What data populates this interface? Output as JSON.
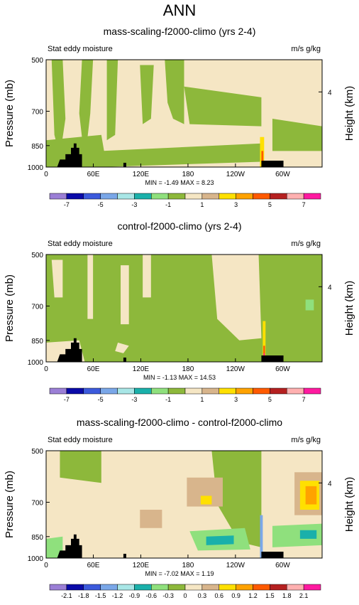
{
  "figure": {
    "main_title": "ANN"
  },
  "chart_data": [
    {
      "type": "heatmap",
      "title": "mass-scaling-f2000-climo (yrs 2-4)",
      "left_label": "Stat eddy moisture",
      "right_label": "m/s g/kg",
      "ylabel": "Pressure (mb)",
      "ylabel_right": "Height (km)",
      "yticks": [
        "500",
        "700",
        "850",
        "1000"
      ],
      "yticks_right": [
        "4"
      ],
      "xticks": [
        "0",
        "60E",
        "120E",
        "180",
        "120W",
        "60W"
      ],
      "min_max": "MIN = -1.49  MAX = 8.23",
      "colorbar_labels": [
        "-7",
        "-5",
        "-3",
        "-1",
        "1",
        "3",
        "5",
        "7"
      ],
      "colors": [
        "#9b7fd6",
        "#0a0aa8",
        "#3c5adc",
        "#7aa7e8",
        "#a8e6e6",
        "#1ab0aa",
        "#8fe07d",
        "#8db83b",
        "#f5e6c4",
        "#d8b58c",
        "#ffe000",
        "#ffa200",
        "#ff5a00",
        "#b52020",
        "#ffb0b0",
        "#ff1aa0"
      ],
      "field": "positive-broad"
    },
    {
      "type": "heatmap",
      "title": "control-f2000-climo (yrs 2-4)",
      "left_label": "Stat eddy moisture",
      "right_label": "m/s g/kg",
      "ylabel": "Pressure (mb)",
      "ylabel_right": "Height (km)",
      "yticks": [
        "500",
        "700",
        "850",
        "1000"
      ],
      "yticks_right": [
        "4"
      ],
      "xticks": [
        "0",
        "60E",
        "120E",
        "180",
        "120W",
        "60W"
      ],
      "min_max": "MIN = -1.13  MAX = 14.53",
      "colorbar_labels": [
        "-7",
        "-5",
        "-3",
        "-1",
        "1",
        "3",
        "5",
        "7"
      ],
      "colors": [
        "#9b7fd6",
        "#0a0aa8",
        "#3c5adc",
        "#7aa7e8",
        "#a8e6e6",
        "#1ab0aa",
        "#8fe07d",
        "#8db83b",
        "#f5e6c4",
        "#d8b58c",
        "#ffe000",
        "#ffa200",
        "#ff5a00",
        "#b52020",
        "#ffb0b0",
        "#ff1aa0"
      ],
      "field": "green-dominant"
    },
    {
      "type": "heatmap",
      "title": "mass-scaling-f2000-climo - control-f2000-climo",
      "left_label": "Stat eddy moisture",
      "right_label": "m/s g/kg",
      "ylabel": "Pressure (mb)",
      "ylabel_right": "Height (km)",
      "yticks": [
        "500",
        "700",
        "850",
        "1000"
      ],
      "yticks_right": [
        "4"
      ],
      "xticks": [
        "0",
        "60E",
        "120E",
        "180",
        "120W",
        "60W"
      ],
      "min_max": "MIN = -7.02  MAX = 1.19",
      "colorbar_labels": [
        "-2.1",
        "-1.8",
        "-1.5",
        "-1.2",
        "-0.9",
        "-0.6",
        "-0.3",
        "0",
        "0.3",
        "0.6",
        "0.9",
        "1.2",
        "1.5",
        "1.8",
        "2.1"
      ],
      "colors": [
        "#9b7fd6",
        "#0a0aa8",
        "#3c5adc",
        "#7aa7e8",
        "#a8e6e6",
        "#1ab0aa",
        "#8fe07d",
        "#8db83b",
        "#f5e6c4",
        "#d8b58c",
        "#ffe000",
        "#ffa200",
        "#ff5a00",
        "#b52020",
        "#ffb0b0",
        "#ff1aa0"
      ],
      "field": "difference"
    }
  ]
}
